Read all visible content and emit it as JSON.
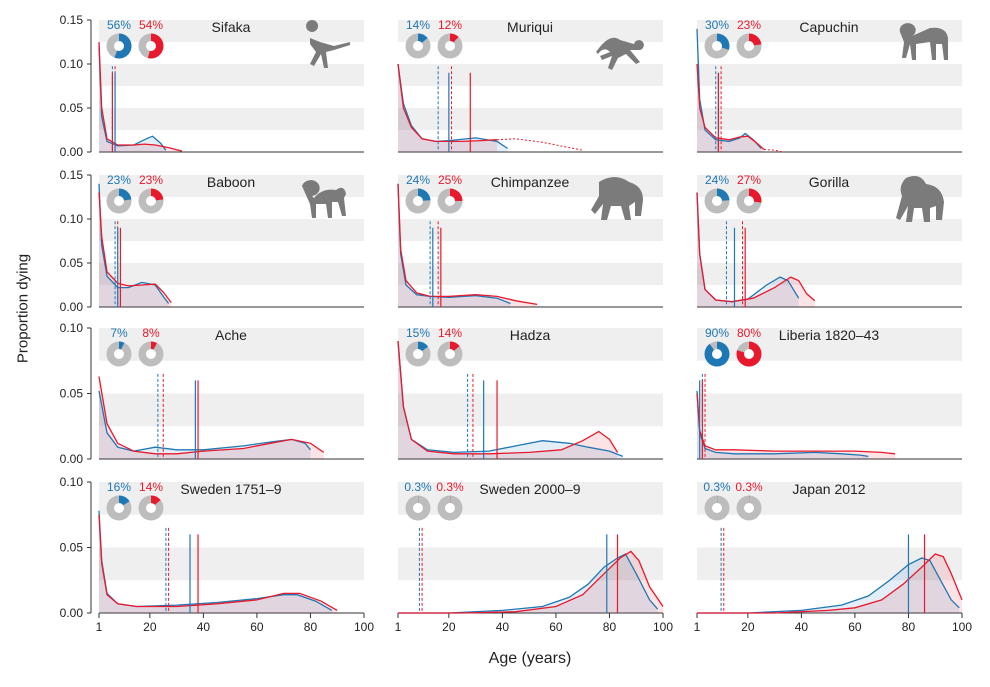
{
  "colors": {
    "male": "#1f77b4",
    "female": "#e8192c",
    "band": "#efefef",
    "pie_bg": "#bdbdbd",
    "silhouette": "#7b7b7b"
  },
  "figure": {
    "ylabel": "Proportion dying",
    "xlabel": "Age (years)"
  },
  "chart_data": [
    {
      "type": "area",
      "title": "Sifaka",
      "pct_male": "56%",
      "pct_female": "54%",
      "male_frac": 0.56,
      "female_frac": 0.54,
      "icon": "lemur-silhouette-icon",
      "ylim": [
        0,
        0.15
      ],
      "yticks": [
        "0.00",
        "0.05",
        "0.10",
        "0.15"
      ],
      "xlim": [
        1,
        100
      ],
      "male_median": 6,
      "female_median": 7,
      "male_mean": 7,
      "female_mean": 6,
      "male_curve": [
        [
          1,
          0.12
        ],
        [
          2,
          0.04
        ],
        [
          4,
          0.012
        ],
        [
          8,
          0.007
        ],
        [
          14,
          0.008
        ],
        [
          18,
          0.014
        ],
        [
          21,
          0.018
        ],
        [
          24,
          0.01
        ],
        [
          26,
          0.002
        ]
      ],
      "female_curve": [
        [
          1,
          0.125
        ],
        [
          2,
          0.05
        ],
        [
          4,
          0.015
        ],
        [
          8,
          0.008
        ],
        [
          14,
          0.008
        ],
        [
          18,
          0.009
        ],
        [
          22,
          0.008
        ],
        [
          27,
          0.005
        ],
        [
          32,
          0.001
        ]
      ]
    },
    {
      "type": "area",
      "title": "Muriqui",
      "pct_male": "14%",
      "pct_female": "12%",
      "male_frac": 0.14,
      "female_frac": 0.12,
      "icon": "spider-monkey-silhouette-icon",
      "ylim": [
        0,
        0.15
      ],
      "yticks": [
        "0.00",
        "0.05",
        "0.10",
        "0.15"
      ],
      "xlim": [
        1,
        100
      ],
      "male_median": 16,
      "female_median": 21,
      "male_mean": 20,
      "female_mean": 28,
      "male_curve": [
        [
          1,
          0.1
        ],
        [
          3,
          0.055
        ],
        [
          6,
          0.03
        ],
        [
          10,
          0.015
        ],
        [
          15,
          0.012
        ],
        [
          20,
          0.013
        ],
        [
          30,
          0.016
        ],
        [
          38,
          0.012
        ],
        [
          42,
          0.004
        ]
      ],
      "female_curve": [
        [
          1,
          0.1
        ],
        [
          3,
          0.05
        ],
        [
          6,
          0.028
        ],
        [
          10,
          0.015
        ],
        [
          15,
          0.012
        ],
        [
          25,
          0.012
        ],
        [
          32,
          0.013
        ],
        [
          38,
          0.014
        ]
      ],
      "female_projection": [
        [
          38,
          0.014
        ],
        [
          45,
          0.015
        ],
        [
          55,
          0.011
        ],
        [
          65,
          0.005
        ],
        [
          70,
          0.002
        ]
      ]
    },
    {
      "type": "area",
      "title": "Capuchin",
      "pct_male": "30%",
      "pct_female": "23%",
      "male_frac": 0.3,
      "female_frac": 0.23,
      "icon": "capuchin-silhouette-icon",
      "ylim": [
        0,
        0.15
      ],
      "yticks": [
        "0.00",
        "0.05",
        "0.10",
        "0.15"
      ],
      "xlim": [
        1,
        100
      ],
      "male_median": 8,
      "female_median": 10,
      "male_mean": 9,
      "female_mean": 9,
      "male_curve": [
        [
          1,
          0.14
        ],
        [
          2,
          0.06
        ],
        [
          4,
          0.025
        ],
        [
          8,
          0.014
        ],
        [
          13,
          0.012
        ],
        [
          17,
          0.016
        ],
        [
          19,
          0.021
        ],
        [
          22,
          0.014
        ],
        [
          25,
          0.004
        ]
      ],
      "female_curve": [
        [
          1,
          0.1
        ],
        [
          2,
          0.05
        ],
        [
          4,
          0.028
        ],
        [
          8,
          0.016
        ],
        [
          13,
          0.014
        ],
        [
          17,
          0.017
        ],
        [
          20,
          0.018
        ],
        [
          23,
          0.011
        ],
        [
          26,
          0.003
        ]
      ],
      "female_projection": [
        [
          26,
          0.003
        ],
        [
          30,
          0.002
        ],
        [
          33,
          0.0
        ]
      ]
    },
    {
      "type": "area",
      "title": "Baboon",
      "pct_male": "23%",
      "pct_female": "23%",
      "male_frac": 0.23,
      "female_frac": 0.23,
      "icon": "baboon-silhouette-icon",
      "ylim": [
        0,
        0.15
      ],
      "yticks": [
        "0.00",
        "0.05",
        "0.10",
        "0.15"
      ],
      "xlim": [
        1,
        100
      ],
      "male_median": 7,
      "female_median": 8,
      "male_mean": 8,
      "female_mean": 9,
      "male_curve": [
        [
          1,
          0.14
        ],
        [
          2,
          0.07
        ],
        [
          4,
          0.035
        ],
        [
          8,
          0.022
        ],
        [
          12,
          0.022
        ],
        [
          17,
          0.028
        ],
        [
          22,
          0.025
        ],
        [
          25,
          0.012
        ],
        [
          27,
          0.004
        ]
      ],
      "female_curve": [
        [
          1,
          0.13
        ],
        [
          2,
          0.08
        ],
        [
          4,
          0.04
        ],
        [
          8,
          0.027
        ],
        [
          12,
          0.024
        ],
        [
          17,
          0.025
        ],
        [
          22,
          0.026
        ],
        [
          25,
          0.017
        ],
        [
          28,
          0.005
        ]
      ]
    },
    {
      "type": "area",
      "title": "Chimpanzee",
      "pct_male": "24%",
      "pct_female": "25%",
      "male_frac": 0.24,
      "female_frac": 0.25,
      "icon": "chimpanzee-silhouette-icon",
      "ylim": [
        0,
        0.15
      ],
      "yticks": [
        "0.00",
        "0.05",
        "0.10",
        "0.15"
      ],
      "xlim": [
        1,
        100
      ],
      "male_median": 13,
      "female_median": 16,
      "male_mean": 14,
      "female_mean": 17,
      "male_curve": [
        [
          1,
          0.14
        ],
        [
          2,
          0.06
        ],
        [
          4,
          0.025
        ],
        [
          8,
          0.014
        ],
        [
          13,
          0.012
        ],
        [
          20,
          0.011
        ],
        [
          30,
          0.013
        ],
        [
          38,
          0.01
        ],
        [
          43,
          0.004
        ]
      ],
      "female_curve": [
        [
          1,
          0.14
        ],
        [
          2,
          0.065
        ],
        [
          4,
          0.03
        ],
        [
          8,
          0.016
        ],
        [
          13,
          0.012
        ],
        [
          20,
          0.012
        ],
        [
          30,
          0.014
        ],
        [
          38,
          0.012
        ],
        [
          45,
          0.007
        ],
        [
          53,
          0.003
        ]
      ]
    },
    {
      "type": "area",
      "title": "Gorilla",
      "pct_male": "24%",
      "pct_female": "27%",
      "male_frac": 0.24,
      "female_frac": 0.27,
      "icon": "gorilla-silhouette-icon",
      "ylim": [
        0,
        0.15
      ],
      "yticks": [
        "0.00",
        "0.05",
        "0.10",
        "0.15"
      ],
      "xlim": [
        1,
        100
      ],
      "male_median": 12,
      "female_median": 18,
      "male_mean": 15,
      "female_mean": 19,
      "male_curve": [
        [
          1,
          0.13
        ],
        [
          2,
          0.06
        ],
        [
          4,
          0.02
        ],
        [
          8,
          0.008
        ],
        [
          14,
          0.006
        ],
        [
          20,
          0.009
        ],
        [
          27,
          0.025
        ],
        [
          32,
          0.034
        ],
        [
          35,
          0.03
        ],
        [
          39,
          0.01
        ]
      ],
      "female_curve": [
        [
          1,
          0.13
        ],
        [
          2,
          0.06
        ],
        [
          4,
          0.02
        ],
        [
          8,
          0.008
        ],
        [
          14,
          0.006
        ],
        [
          22,
          0.01
        ],
        [
          30,
          0.022
        ],
        [
          36,
          0.034
        ],
        [
          39,
          0.03
        ],
        [
          42,
          0.015
        ],
        [
          45,
          0.007
        ]
      ]
    },
    {
      "type": "area",
      "title": "Ache",
      "pct_male": "7%",
      "pct_female": "8%",
      "male_frac": 0.07,
      "female_frac": 0.08,
      "icon": "",
      "ylim": [
        0,
        0.1
      ],
      "yticks": [
        "0.00",
        "0.05",
        "0.10"
      ],
      "xlim": [
        1,
        100
      ],
      "male_median": 23,
      "female_median": 25,
      "male_mean": 37,
      "female_mean": 38,
      "male_curve": [
        [
          1,
          0.052
        ],
        [
          4,
          0.02
        ],
        [
          8,
          0.009
        ],
        [
          14,
          0.006
        ],
        [
          22,
          0.009
        ],
        [
          30,
          0.007
        ],
        [
          40,
          0.007
        ],
        [
          55,
          0.01
        ],
        [
          65,
          0.013
        ],
        [
          73,
          0.015
        ],
        [
          78,
          0.012
        ],
        [
          80,
          0.007
        ]
      ],
      "female_curve": [
        [
          1,
          0.063
        ],
        [
          4,
          0.027
        ],
        [
          8,
          0.012
        ],
        [
          14,
          0.006
        ],
        [
          22,
          0.004
        ],
        [
          30,
          0.004
        ],
        [
          40,
          0.006
        ],
        [
          55,
          0.008
        ],
        [
          65,
          0.012
        ],
        [
          73,
          0.015
        ],
        [
          80,
          0.012
        ],
        [
          85,
          0.005
        ]
      ]
    },
    {
      "type": "area",
      "title": "Hadza",
      "pct_male": "15%",
      "pct_female": "14%",
      "male_frac": 0.15,
      "female_frac": 0.14,
      "icon": "",
      "ylim": [
        0,
        0.1
      ],
      "yticks": [
        "0.00",
        "0.05",
        "0.10"
      ],
      "xlim": [
        1,
        100
      ],
      "male_median": 27,
      "female_median": 29,
      "male_mean": 33,
      "female_mean": 38,
      "male_curve": [
        [
          1,
          0.09
        ],
        [
          3,
          0.04
        ],
        [
          6,
          0.015
        ],
        [
          12,
          0.007
        ],
        [
          22,
          0.005
        ],
        [
          35,
          0.006
        ],
        [
          45,
          0.01
        ],
        [
          55,
          0.014
        ],
        [
          65,
          0.012
        ],
        [
          72,
          0.009
        ],
        [
          80,
          0.006
        ],
        [
          85,
          0.002
        ]
      ],
      "female_curve": [
        [
          1,
          0.09
        ],
        [
          3,
          0.04
        ],
        [
          6,
          0.015
        ],
        [
          12,
          0.006
        ],
        [
          22,
          0.004
        ],
        [
          35,
          0.004
        ],
        [
          50,
          0.005
        ],
        [
          62,
          0.007
        ],
        [
          70,
          0.014
        ],
        [
          76,
          0.021
        ],
        [
          80,
          0.015
        ],
        [
          83,
          0.005
        ]
      ]
    },
    {
      "type": "area",
      "title": "Liberia 1820–43",
      "pct_male": "90%",
      "pct_female": "80%",
      "male_frac": 0.9,
      "female_frac": 0.8,
      "icon": "",
      "ylim": [
        0,
        0.1
      ],
      "yticks": [
        "0.00",
        "0.05",
        "0.10"
      ],
      "xlim": [
        1,
        100
      ],
      "male_median": 3,
      "female_median": 4,
      "male_mean": 2,
      "female_mean": 3,
      "male_curve": [
        [
          1,
          0.052
        ],
        [
          2,
          0.02
        ],
        [
          4,
          0.008
        ],
        [
          8,
          0.005
        ],
        [
          15,
          0.004
        ],
        [
          30,
          0.004
        ],
        [
          45,
          0.005
        ],
        [
          55,
          0.004
        ],
        [
          62,
          0.003
        ],
        [
          65,
          0.002
        ]
      ],
      "female_curve": [
        [
          1,
          0.05
        ],
        [
          2,
          0.022
        ],
        [
          4,
          0.01
        ],
        [
          8,
          0.007
        ],
        [
          15,
          0.007
        ],
        [
          30,
          0.006
        ],
        [
          45,
          0.006
        ],
        [
          60,
          0.006
        ],
        [
          70,
          0.005
        ],
        [
          75,
          0.004
        ]
      ]
    },
    {
      "type": "area",
      "title": "Sweden 1751–9",
      "pct_male": "16%",
      "pct_female": "14%",
      "male_frac": 0.16,
      "female_frac": 0.14,
      "icon": "",
      "ylim": [
        0,
        0.1
      ],
      "yticks": [
        "0.00",
        "0.05",
        "0.10"
      ],
      "xlim": [
        1,
        100
      ],
      "male_median": 26,
      "female_median": 27,
      "male_mean": 35,
      "female_mean": 38,
      "male_curve": [
        [
          1,
          0.078
        ],
        [
          2,
          0.04
        ],
        [
          4,
          0.015
        ],
        [
          8,
          0.007
        ],
        [
          15,
          0.005
        ],
        [
          30,
          0.006
        ],
        [
          45,
          0.008
        ],
        [
          60,
          0.011
        ],
        [
          70,
          0.014
        ],
        [
          75,
          0.014
        ],
        [
          82,
          0.009
        ],
        [
          88,
          0.002
        ]
      ],
      "female_curve": [
        [
          1,
          0.075
        ],
        [
          2,
          0.038
        ],
        [
          4,
          0.014
        ],
        [
          8,
          0.007
        ],
        [
          15,
          0.005
        ],
        [
          30,
          0.005
        ],
        [
          45,
          0.007
        ],
        [
          60,
          0.01
        ],
        [
          70,
          0.015
        ],
        [
          76,
          0.015
        ],
        [
          84,
          0.009
        ],
        [
          90,
          0.002
        ]
      ]
    },
    {
      "type": "area",
      "title": "Sweden 2000–9",
      "pct_male": "0.3%",
      "pct_female": "0.3%",
      "male_frac": 0.003,
      "female_frac": 0.003,
      "icon": "",
      "ylim": [
        0,
        0.1
      ],
      "yticks": [
        "0.00",
        "0.05",
        "0.10"
      ],
      "xlim": [
        1,
        100
      ],
      "male_median": 9,
      "female_median": 10,
      "male_mean": 79,
      "female_mean": 83,
      "male_curve": [
        [
          1,
          0.0
        ],
        [
          20,
          0.0
        ],
        [
          40,
          0.002
        ],
        [
          55,
          0.005
        ],
        [
          65,
          0.012
        ],
        [
          72,
          0.022
        ],
        [
          78,
          0.035
        ],
        [
          83,
          0.042
        ],
        [
          86,
          0.045
        ],
        [
          90,
          0.03
        ],
        [
          95,
          0.01
        ],
        [
          98,
          0.003
        ]
      ],
      "female_curve": [
        [
          1,
          0.0
        ],
        [
          25,
          0.0
        ],
        [
          45,
          0.001
        ],
        [
          60,
          0.005
        ],
        [
          70,
          0.014
        ],
        [
          78,
          0.03
        ],
        [
          84,
          0.042
        ],
        [
          88,
          0.047
        ],
        [
          91,
          0.04
        ],
        [
          95,
          0.02
        ],
        [
          100,
          0.005
        ]
      ]
    },
    {
      "type": "area",
      "title": "Japan 2012",
      "pct_male": "0.3%",
      "pct_female": "0.3%",
      "male_frac": 0.003,
      "female_frac": 0.003,
      "icon": "",
      "ylim": [
        0,
        0.1
      ],
      "yticks": [
        "0.00",
        "0.05",
        "0.10"
      ],
      "xlim": [
        1,
        100
      ],
      "male_median": 10,
      "female_median": 11,
      "male_mean": 80,
      "female_mean": 86,
      "male_curve": [
        [
          1,
          0.0
        ],
        [
          20,
          0.0
        ],
        [
          40,
          0.002
        ],
        [
          55,
          0.006
        ],
        [
          65,
          0.013
        ],
        [
          73,
          0.025
        ],
        [
          80,
          0.037
        ],
        [
          85,
          0.042
        ],
        [
          88,
          0.04
        ],
        [
          92,
          0.025
        ],
        [
          96,
          0.01
        ],
        [
          99,
          0.004
        ]
      ],
      "female_curve": [
        [
          1,
          0.0
        ],
        [
          30,
          0.0
        ],
        [
          50,
          0.002
        ],
        [
          60,
          0.004
        ],
        [
          70,
          0.01
        ],
        [
          78,
          0.022
        ],
        [
          85,
          0.035
        ],
        [
          90,
          0.045
        ],
        [
          93,
          0.043
        ],
        [
          96,
          0.03
        ],
        [
          100,
          0.01
        ]
      ]
    }
  ]
}
